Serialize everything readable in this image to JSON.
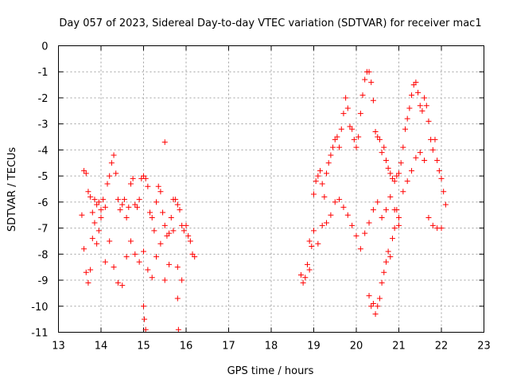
{
  "chart_data": {
    "type": "scatter",
    "title": "Day 057 of 2023, Sidereal Day-to-day VTEC variation (SDTVAR) for receiver mac1",
    "xlabel": "GPS time / hours",
    "ylabel": "SDTVAR / TECUs",
    "xlim": [
      13,
      23
    ],
    "ylim": [
      -11,
      0
    ],
    "xticks": [
      "13",
      "14",
      "15",
      "16",
      "17",
      "18",
      "19",
      "20",
      "21",
      "22",
      "23"
    ],
    "yticks": [
      "0",
      "-1",
      "-2",
      "-3",
      "-4",
      "-5",
      "-6",
      "-7",
      "-8",
      "-9",
      "-10",
      "-11"
    ],
    "grid": true,
    "marker": "+",
    "color": "#ff0000",
    "series": [
      {
        "name": "SDTVAR",
        "x": [
          13.55,
          13.6,
          13.65,
          13.7,
          13.75,
          13.8,
          13.85,
          13.9,
          13.95,
          14.0,
          14.05,
          14.1,
          14.15,
          14.2,
          14.25,
          14.3,
          14.35,
          14.4,
          14.45,
          14.5,
          14.55,
          14.6,
          14.65,
          14.7,
          14.75,
          14.8,
          14.85,
          14.9,
          14.95,
          15.0,
          15.05,
          15.1,
          15.15,
          15.2,
          15.25,
          15.3,
          15.35,
          15.4,
          15.45,
          15.5,
          15.55,
          15.6,
          15.65,
          15.7,
          15.75,
          15.8,
          15.85,
          15.9,
          15.95,
          16.0,
          16.05,
          16.1,
          16.15,
          16.2,
          13.6,
          13.65,
          13.7,
          13.75,
          13.8,
          13.85,
          13.9,
          13.95,
          14.0,
          14.1,
          14.2,
          14.3,
          14.4,
          14.5,
          14.6,
          14.7,
          14.8,
          14.9,
          15.0,
          15.1,
          15.2,
          15.3,
          15.4,
          15.5,
          15.6,
          15.7,
          15.8,
          15.9,
          15.0,
          15.02,
          15.05,
          15.5,
          15.8,
          15.82,
          18.7,
          18.75,
          18.8,
          18.85,
          18.9,
          18.95,
          19.0,
          19.05,
          19.1,
          19.15,
          19.2,
          19.25,
          19.3,
          19.35,
          19.4,
          19.45,
          19.5,
          19.55,
          19.6,
          19.65,
          19.7,
          19.75,
          19.8,
          19.85,
          19.9,
          19.95,
          20.0,
          20.05,
          20.1,
          20.15,
          20.2,
          20.25,
          20.3,
          20.35,
          20.4,
          20.45,
          20.5,
          20.55,
          20.6,
          20.65,
          20.7,
          20.75,
          20.8,
          20.85,
          20.9,
          20.95,
          21.0,
          21.05,
          21.1,
          21.15,
          21.2,
          21.25,
          21.3,
          21.35,
          21.4,
          21.45,
          21.5,
          21.55,
          21.6,
          21.65,
          21.7,
          21.75,
          21.8,
          21.85,
          21.9,
          21.95,
          22.0,
          22.05,
          22.1,
          18.9,
          19.0,
          19.1,
          19.2,
          19.3,
          19.4,
          19.5,
          19.6,
          19.7,
          19.8,
          19.9,
          20.0,
          20.1,
          20.2,
          20.3,
          20.4,
          20.5,
          20.6,
          20.7,
          20.8,
          20.9,
          21.0,
          21.1,
          21.2,
          21.3,
          21.4,
          21.5,
          21.6,
          21.7,
          21.8,
          21.9,
          22.0,
          20.3,
          20.35,
          20.4,
          20.45,
          20.5,
          20.55,
          20.6,
          20.65,
          20.7,
          20.75,
          20.8,
          20.85,
          20.9,
          20.95,
          21.0
        ],
        "y": [
          -6.5,
          -4.8,
          -4.9,
          -5.6,
          -5.8,
          -6.4,
          -5.9,
          -6.1,
          -6.0,
          -6.3,
          -5.9,
          -6.2,
          -5.3,
          -5.0,
          -4.5,
          -4.2,
          -4.9,
          -5.9,
          -6.3,
          -6.1,
          -5.9,
          -6.6,
          -6.2,
          -5.3,
          -5.1,
          -6.1,
          -6.2,
          -5.9,
          -5.1,
          -5.0,
          -5.1,
          -5.4,
          -6.4,
          -6.6,
          -7.1,
          -6.0,
          -5.4,
          -5.6,
          -6.4,
          -6.9,
          -7.3,
          -7.2,
          -6.6,
          -5.9,
          -5.9,
          -6.1,
          -6.3,
          -6.9,
          -7.1,
          -6.9,
          -7.3,
          -7.5,
          -8.0,
          -8.1,
          -7.8,
          -8.7,
          -9.1,
          -8.6,
          -7.4,
          -6.8,
          -7.6,
          -7.1,
          -6.6,
          -8.3,
          -7.5,
          -8.5,
          -9.1,
          -9.2,
          -8.1,
          -7.5,
          -8.0,
          -8.3,
          -7.9,
          -8.6,
          -8.9,
          -8.1,
          -7.6,
          -9.0,
          -8.4,
          -7.1,
          -8.5,
          -9.0,
          -10.0,
          -10.5,
          -10.9,
          -3.7,
          -9.7,
          -10.9,
          -8.8,
          -9.1,
          -8.9,
          -8.4,
          -7.5,
          -7.7,
          -5.7,
          -5.2,
          -5.0,
          -4.8,
          -5.3,
          -5.8,
          -4.9,
          -4.5,
          -4.2,
          -3.9,
          -3.6,
          -3.5,
          -3.9,
          -3.2,
          -2.6,
          -2.0,
          -2.4,
          -3.1,
          -3.2,
          -3.6,
          -3.9,
          -3.5,
          -2.6,
          -1.9,
          -1.3,
          -1.0,
          -1.0,
          -1.4,
          -2.1,
          -3.3,
          -3.5,
          -3.6,
          -4.1,
          -3.9,
          -4.4,
          -4.7,
          -4.9,
          -5.1,
          -5.2,
          -5.0,
          -4.9,
          -4.5,
          -3.9,
          -3.2,
          -2.8,
          -2.4,
          -1.9,
          -1.5,
          -1.4,
          -1.8,
          -2.3,
          -2.5,
          -2.0,
          -2.3,
          -2.9,
          -3.6,
          -4.0,
          -3.6,
          -4.4,
          -4.8,
          -5.1,
          -5.6,
          -6.1,
          -8.6,
          -7.1,
          -7.6,
          -6.9,
          -6.8,
          -6.5,
          -6.0,
          -5.9,
          -6.2,
          -6.5,
          -6.9,
          -7.3,
          -7.8,
          -7.2,
          -6.8,
          -6.3,
          -6.0,
          -6.6,
          -6.3,
          -5.8,
          -6.3,
          -6.9,
          -5.6,
          -5.2,
          -4.8,
          -4.3,
          -4.1,
          -4.4,
          -6.6,
          -6.9,
          -7.0,
          -7.0,
          -9.6,
          -10.0,
          -9.9,
          -10.3,
          -10.0,
          -9.7,
          -9.1,
          -8.7,
          -8.3,
          -7.9,
          -8.1,
          -7.4,
          -7.0,
          -6.3,
          -6.6
        ]
      }
    ]
  }
}
